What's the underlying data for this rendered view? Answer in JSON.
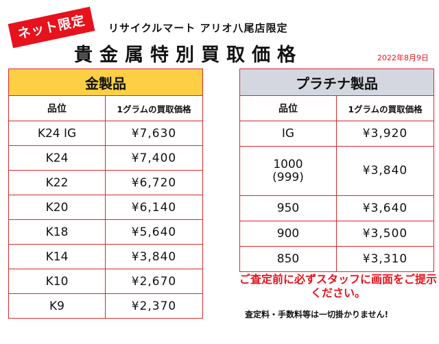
{
  "badge": "ネット限定",
  "store_name": "リサイクルマート アリオ八尾店限定",
  "title": "貴金属特別買取価格",
  "date": "2022年8月9日",
  "gold": {
    "section_label": "金製品",
    "col_grade": "品位",
    "col_price": "1グラムの買取価格",
    "rows": [
      {
        "grade": "K24 IG",
        "price": "¥7,630"
      },
      {
        "grade": "K24",
        "price": "¥7,400"
      },
      {
        "grade": "K22",
        "price": "¥6,720"
      },
      {
        "grade": "K20",
        "price": "¥6,140"
      },
      {
        "grade": "K18",
        "price": "¥5,640"
      },
      {
        "grade": "K14",
        "price": "¥3,840"
      },
      {
        "grade": "K10",
        "price": "¥2,670"
      },
      {
        "grade": "K9",
        "price": "¥2,370"
      }
    ]
  },
  "platinum": {
    "section_label": "プラチナ製品",
    "col_grade": "品位",
    "col_price": "1グラムの買取価格",
    "rows": [
      {
        "grade": "IG",
        "price": "¥3,920"
      },
      {
        "grade": "1000",
        "grade_sub": "(999)",
        "price": "¥3,840"
      },
      {
        "grade": "950",
        "price": "¥3,640"
      },
      {
        "grade": "900",
        "price": "¥3,500"
      },
      {
        "grade": "850",
        "price": "¥3,310"
      }
    ]
  },
  "notice": "ご査定前に必ずスタッフに画面をご提示ください。",
  "fee_note": "査定料・手数料等は一切掛かりません!"
}
